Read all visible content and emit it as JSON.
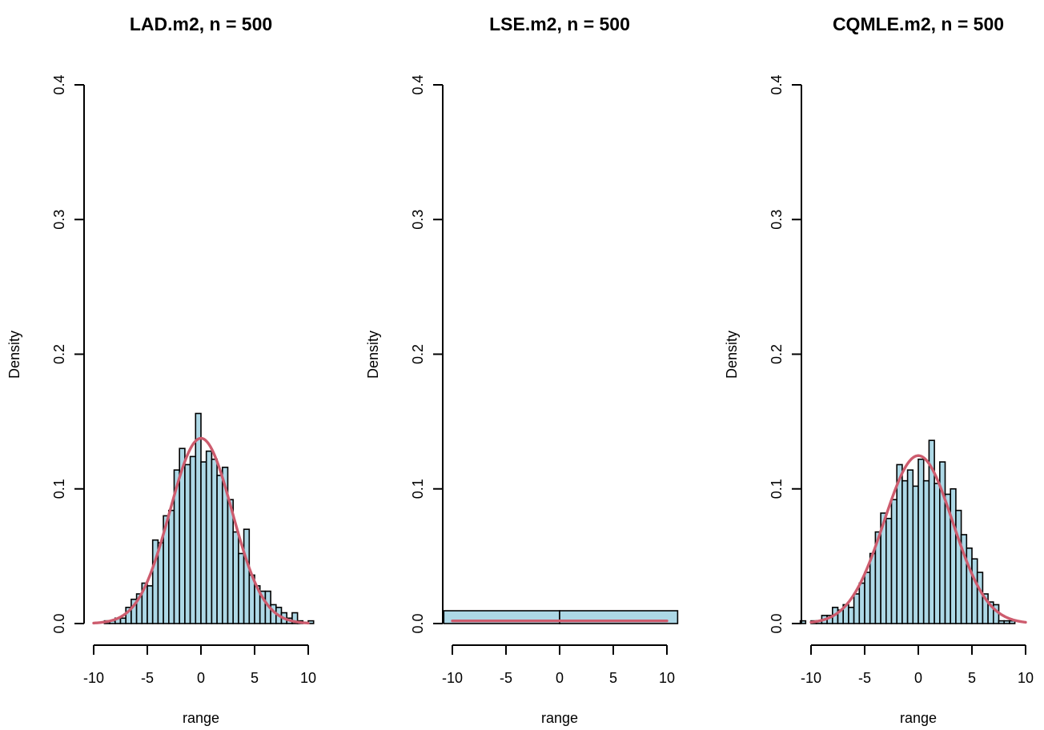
{
  "chart_data": [
    {
      "type": "histogram",
      "title": "LAD.m2, n = 500",
      "xlabel": "range",
      "ylabel": "Density",
      "xlim": [
        -10,
        10.5
      ],
      "ylim": [
        0,
        0.4
      ],
      "x_ticks": [
        -10,
        -5,
        0,
        5,
        10
      ],
      "x_tick_labels": [
        "-10",
        "-5",
        "0",
        "5",
        "10"
      ],
      "y_ticks": [
        0,
        0.1,
        0.2,
        0.3,
        0.4
      ],
      "y_tick_labels": [
        "0.0",
        "0.1",
        "0.2",
        "0.3",
        "0.4"
      ],
      "bar_color": "#add8e6",
      "curve_color": "#cd5c6e",
      "bin_edges": [
        -9.0,
        -8.5,
        -8.0,
        -7.5,
        -7.0,
        -6.5,
        -6.0,
        -5.5,
        -5.0,
        -4.5,
        -4.0,
        -3.5,
        -3.0,
        -2.5,
        -2.0,
        -1.5,
        -1.0,
        -0.5,
        0.0,
        0.5,
        1.0,
        1.5,
        2.0,
        2.5,
        3.0,
        3.5,
        4.0,
        4.5,
        5.0,
        5.5,
        6.0,
        6.5,
        7.0,
        7.5,
        8.0,
        8.5,
        9.0,
        9.5,
        10.0,
        10.5
      ],
      "densities": [
        0.002,
        0.002,
        0.004,
        0.004,
        0.012,
        0.018,
        0.022,
        0.03,
        0.028,
        0.062,
        0.06,
        0.08,
        0.084,
        0.114,
        0.13,
        0.118,
        0.124,
        0.156,
        0.12,
        0.128,
        0.122,
        0.11,
        0.116,
        0.092,
        0.068,
        0.052,
        0.07,
        0.036,
        0.028,
        0.024,
        0.024,
        0.014,
        0.012,
        0.008,
        0.004,
        0.008,
        0.002,
        0.0,
        0.002
      ],
      "curve": {
        "mean": 0.0,
        "sd": 2.9,
        "from": -10,
        "to": 10
      }
    },
    {
      "type": "histogram",
      "title": "LSE.m2, n = 500",
      "xlabel": "range",
      "ylabel": "Density",
      "xlim": [
        -10.8,
        11
      ],
      "ylim": [
        0,
        0.4
      ],
      "x_ticks": [
        -10,
        -5,
        0,
        5,
        10
      ],
      "x_tick_labels": [
        "-10",
        "-5",
        "0",
        "5",
        "10"
      ],
      "y_ticks": [
        0,
        0.1,
        0.2,
        0.3,
        0.4
      ],
      "y_tick_labels": [
        "0.0",
        "0.1",
        "0.2",
        "0.3",
        "0.4"
      ],
      "bar_color": "#add8e6",
      "curve_color": "#cd5c6e",
      "bin_edges": [
        -10.8,
        0,
        11
      ],
      "densities": [
        0.0095,
        0.0095
      ],
      "curve": {
        "mean": 0.0,
        "sd": 200,
        "from": -10,
        "to": 10
      }
    },
    {
      "type": "histogram",
      "title": "CQMLE.m2, n = 500",
      "xlabel": "range",
      "ylabel": "Density",
      "xlim": [
        -11,
        10
      ],
      "ylim": [
        0,
        0.4
      ],
      "x_ticks": [
        -10,
        -5,
        0,
        5,
        10
      ],
      "x_tick_labels": [
        "-10",
        "-5",
        "0",
        "5",
        "10"
      ],
      "y_ticks": [
        0,
        0.1,
        0.2,
        0.3,
        0.4
      ],
      "y_tick_labels": [
        "0.0",
        "0.1",
        "0.2",
        "0.3",
        "0.4"
      ],
      "bar_color": "#add8e6",
      "curve_color": "#cd5c6e",
      "bin_edges": [
        -11.0,
        -10.5,
        -10.0,
        -9.5,
        -9.0,
        -8.5,
        -8.0,
        -7.5,
        -7.0,
        -6.5,
        -6.0,
        -5.5,
        -5.0,
        -4.5,
        -4.0,
        -3.5,
        -3.0,
        -2.5,
        -2.0,
        -1.5,
        -1.0,
        -0.5,
        0.0,
        0.5,
        1.0,
        1.5,
        2.0,
        2.5,
        3.0,
        3.5,
        4.0,
        4.5,
        5.0,
        5.5,
        6.0,
        6.5,
        7.0,
        7.5,
        8.0,
        8.5,
        9.0
      ],
      "densities": [
        0.002,
        0.0,
        0.002,
        0.002,
        0.006,
        0.006,
        0.012,
        0.01,
        0.014,
        0.012,
        0.022,
        0.03,
        0.038,
        0.052,
        0.068,
        0.082,
        0.078,
        0.092,
        0.118,
        0.106,
        0.114,
        0.102,
        0.122,
        0.106,
        0.136,
        0.104,
        0.12,
        0.096,
        0.1,
        0.084,
        0.066,
        0.056,
        0.048,
        0.038,
        0.022,
        0.016,
        0.014,
        0.002,
        0.002,
        0.002
      ],
      "curve": {
        "mean": 0.0,
        "sd": 3.2,
        "from": -10,
        "to": 10
      }
    }
  ]
}
